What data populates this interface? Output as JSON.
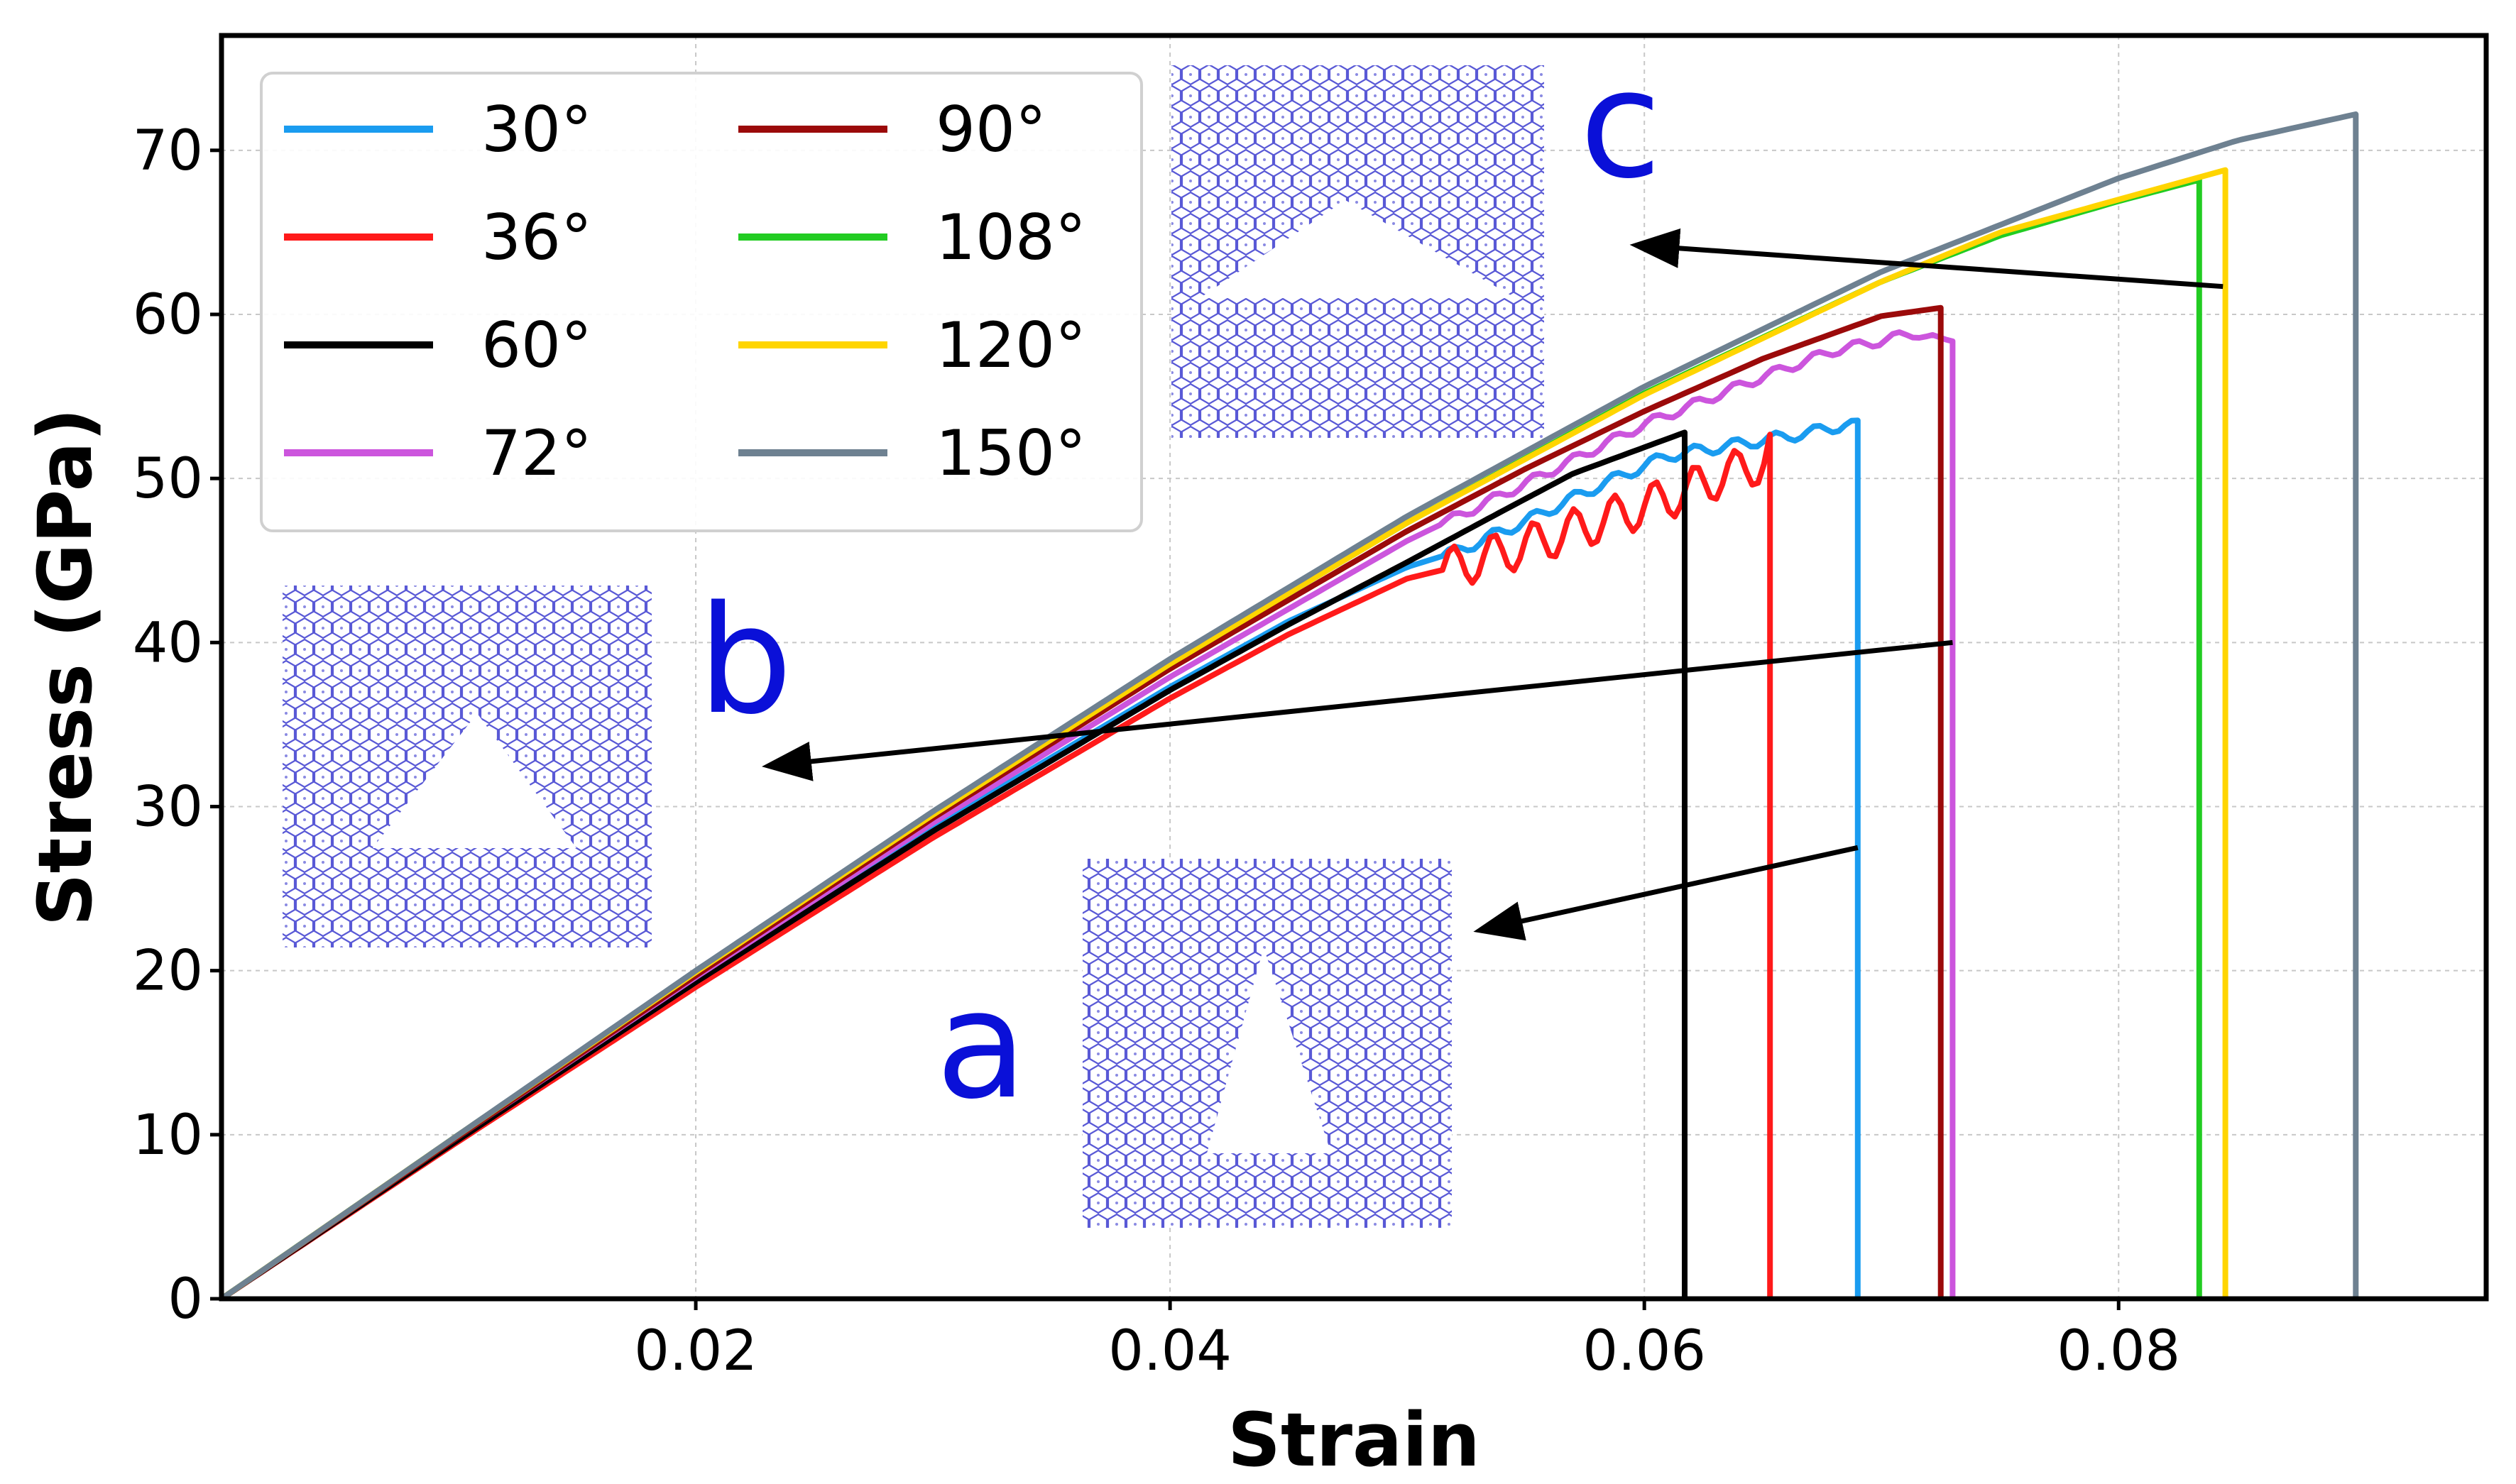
{
  "chart_data": {
    "type": "line",
    "title": "",
    "xlabel": "Strain",
    "ylabel": "Stress (GPa)",
    "xlim": [
      0.0,
      0.0955
    ],
    "ylim": [
      0,
      77
    ],
    "grid": true,
    "legend": {
      "placement": "top-left",
      "columns": 2
    },
    "x_ticks": [
      {
        "value": 0.02,
        "label": "0.02"
      },
      {
        "value": 0.04,
        "label": "0.04"
      },
      {
        "value": 0.06,
        "label": "0.06"
      },
      {
        "value": 0.08,
        "label": "0.08"
      }
    ],
    "y_ticks": [
      {
        "value": 0,
        "label": "0"
      },
      {
        "value": 10,
        "label": "10"
      },
      {
        "value": 20,
        "label": "20"
      },
      {
        "value": 30,
        "label": "30"
      },
      {
        "value": 40,
        "label": "40"
      },
      {
        "value": 50,
        "label": "50"
      },
      {
        "value": 60,
        "label": "60"
      },
      {
        "value": 70,
        "label": "70"
      }
    ],
    "series": [
      {
        "name": "30°",
        "color": "#1a9cf0",
        "wavy": 0.35,
        "x": [
          0,
          0.01,
          0.02,
          0.03,
          0.04,
          0.045,
          0.05,
          0.052,
          0.055,
          0.058,
          0.061,
          0.064,
          0.067,
          0.0685,
          0.069,
          0.069
        ],
        "y": [
          0,
          9.8,
          19.4,
          28.7,
          37.3,
          41.3,
          44.6,
          45.5,
          47.4,
          49.5,
          51.4,
          52.1,
          52.8,
          53.3,
          53.2,
          0
        ]
      },
      {
        "name": "36°",
        "color": "#ff1a1a",
        "wavy": 1.3,
        "x": [
          0,
          0.01,
          0.02,
          0.03,
          0.04,
          0.045,
          0.05,
          0.052,
          0.055,
          0.058,
          0.061,
          0.063,
          0.065,
          0.0653,
          0.0653
        ],
        "y": [
          0,
          9.6,
          19.0,
          28.1,
          36.6,
          40.5,
          43.9,
          44.6,
          45.9,
          47.3,
          48.8,
          50.0,
          51.0,
          51.8,
          0
        ]
      },
      {
        "name": "60°",
        "color": "#000000",
        "wavy": 0,
        "x": [
          0,
          0.01,
          0.02,
          0.03,
          0.04,
          0.045,
          0.05,
          0.054,
          0.057,
          0.06,
          0.0617,
          0.0617
        ],
        "y": [
          0,
          9.7,
          19.3,
          28.5,
          37.1,
          41.1,
          44.9,
          48.0,
          50.3,
          51.9,
          52.8,
          0
        ]
      },
      {
        "name": "72°",
        "color": "#cc55dd",
        "wavy": 0.3,
        "x": [
          0,
          0.01,
          0.02,
          0.03,
          0.04,
          0.05,
          0.055,
          0.06,
          0.065,
          0.068,
          0.07,
          0.0715,
          0.0725,
          0.073,
          0.073
        ],
        "y": [
          0,
          9.9,
          19.6,
          29.0,
          37.9,
          46.2,
          49.7,
          53.3,
          56.2,
          57.8,
          58.4,
          58.9,
          58.3,
          58.6,
          0
        ]
      },
      {
        "name": "90°",
        "color": "#9b0a0a",
        "wavy": 0,
        "x": [
          0,
          0.01,
          0.02,
          0.03,
          0.04,
          0.05,
          0.055,
          0.06,
          0.065,
          0.07,
          0.0725,
          0.0725
        ],
        "y": [
          0,
          9.9,
          19.7,
          29.3,
          38.4,
          46.8,
          50.6,
          54.1,
          57.3,
          59.9,
          60.4,
          0
        ]
      },
      {
        "name": "108°",
        "color": "#22cc22",
        "wavy": 0,
        "x": [
          0,
          0.01,
          0.02,
          0.03,
          0.04,
          0.05,
          0.06,
          0.07,
          0.075,
          0.08,
          0.0834,
          0.0834
        ],
        "y": [
          0,
          10.0,
          19.9,
          29.5,
          38.7,
          47.3,
          55.2,
          62.0,
          64.8,
          66.9,
          68.2,
          0
        ]
      },
      {
        "name": "120°",
        "color": "#ffd500",
        "wavy": 0,
        "x": [
          0,
          0.01,
          0.02,
          0.03,
          0.04,
          0.05,
          0.06,
          0.07,
          0.075,
          0.08,
          0.0845,
          0.0845
        ],
        "y": [
          0,
          10.0,
          19.9,
          29.5,
          38.7,
          47.3,
          55.1,
          62.0,
          65.0,
          67.0,
          68.8,
          0
        ]
      },
      {
        "name": "150°",
        "color": "#6e8191",
        "wavy": 0,
        "x": [
          0,
          0.01,
          0.02,
          0.03,
          0.04,
          0.05,
          0.06,
          0.07,
          0.08,
          0.085,
          0.09,
          0.09
        ],
        "y": [
          0,
          10.0,
          20.0,
          29.7,
          39.0,
          47.7,
          55.6,
          62.6,
          68.3,
          70.6,
          72.2,
          0
        ]
      }
    ],
    "annotations": [
      {
        "label": "a",
        "from": [
          0.069,
          27.5
        ],
        "to": [
          0.0532,
          22.5
        ]
      },
      {
        "label": "b",
        "from": [
          0.073,
          40.0
        ],
        "to": [
          0.0232,
          32.5
        ]
      },
      {
        "label": "c",
        "from": [
          0.0844,
          61.7
        ],
        "to": [
          0.0598,
          64.2
        ]
      }
    ]
  },
  "insets": [
    {
      "label": "a",
      "shape": "tall-triangle"
    },
    {
      "label": "b",
      "shape": "triangle"
    },
    {
      "label": "c",
      "shape": "wide-triangle"
    }
  ]
}
